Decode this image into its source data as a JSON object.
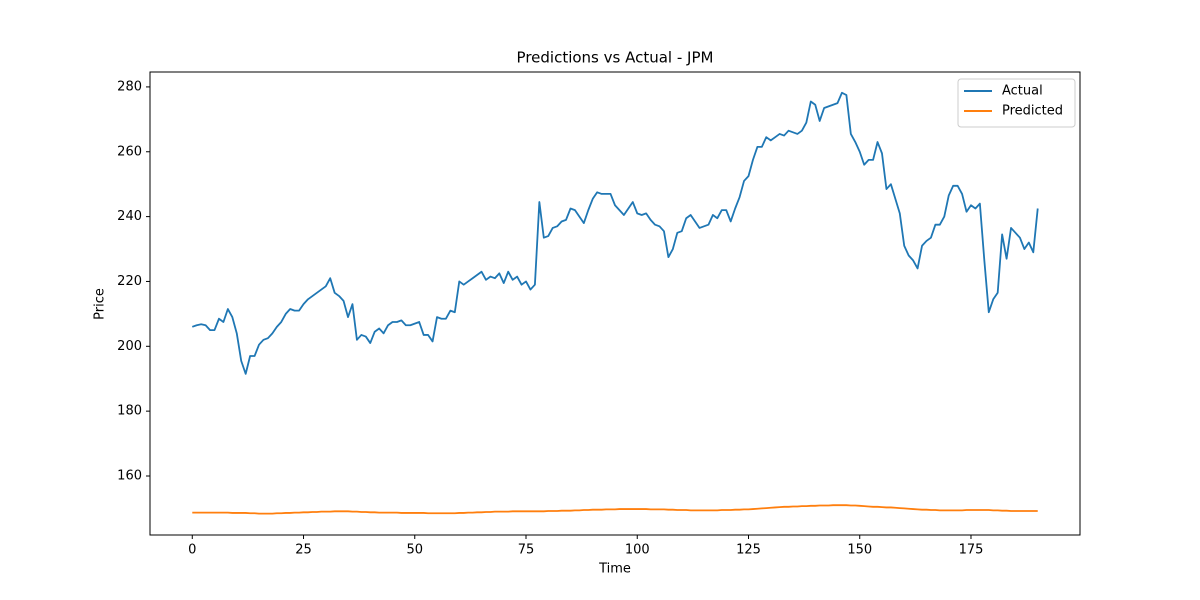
{
  "chart_data": {
    "type": "line",
    "title": "Predictions vs Actual - JPM",
    "x_label": "Time",
    "y_label": "Price",
    "x": [
      0,
      1,
      2,
      3,
      4,
      5,
      6,
      7,
      8,
      9,
      10,
      11,
      12,
      13,
      14,
      15,
      16,
      17,
      18,
      19,
      20,
      21,
      22,
      23,
      24,
      25,
      26,
      27,
      28,
      29,
      30,
      31,
      32,
      33,
      34,
      35,
      36,
      37,
      38,
      39,
      40,
      41,
      42,
      43,
      44,
      45,
      46,
      47,
      48,
      49,
      50,
      51,
      52,
      53,
      54,
      55,
      56,
      57,
      58,
      59,
      60,
      61,
      62,
      63,
      64,
      65,
      66,
      67,
      68,
      69,
      70,
      71,
      72,
      73,
      74,
      75,
      76,
      77,
      78,
      79,
      80,
      81,
      82,
      83,
      84,
      85,
      86,
      87,
      88,
      89,
      90,
      91,
      92,
      93,
      94,
      95,
      96,
      97,
      98,
      99,
      100,
      101,
      102,
      103,
      104,
      105,
      106,
      107,
      108,
      109,
      110,
      111,
      112,
      113,
      114,
      115,
      116,
      117,
      118,
      119,
      120,
      121,
      122,
      123,
      124,
      125,
      126,
      127,
      128,
      129,
      130,
      131,
      132,
      133,
      134,
      135,
      136,
      137,
      138,
      139,
      140,
      141,
      142,
      143,
      144,
      145,
      146,
      147,
      148,
      149,
      150,
      151,
      152,
      153,
      154,
      155,
      156,
      157,
      158,
      159,
      160,
      161,
      162,
      163,
      164,
      165,
      166,
      167,
      168,
      169,
      170,
      171,
      172,
      173,
      174,
      175,
      176,
      177,
      178,
      179,
      180,
      181,
      182,
      183,
      184,
      185,
      186,
      187,
      188,
      189,
      190
    ],
    "series": [
      {
        "name": "Actual",
        "color": "#1f77b4",
        "values": [
          206,
          206.5,
          206.8,
          206.5,
          205,
          205,
          208.5,
          207.5,
          211.5,
          209,
          204,
          195.5,
          191.5,
          197,
          197,
          200.5,
          202,
          202.5,
          204,
          206,
          207.5,
          210,
          211.5,
          211,
          211,
          213,
          214.5,
          215.5,
          216.5,
          217.5,
          218.5,
          221,
          216.5,
          215.5,
          214,
          209,
          213,
          202,
          203.5,
          203,
          201,
          204.5,
          205.5,
          204,
          206.5,
          207.5,
          207.5,
          208,
          206.5,
          206.5,
          207,
          207.5,
          203.5,
          203.5,
          201.5,
          209,
          208.5,
          208.5,
          211,
          210.5,
          220,
          219,
          220,
          221,
          222,
          223,
          220.5,
          221.5,
          221,
          222.5,
          219.5,
          223,
          220.5,
          221.5,
          219,
          220,
          217.5,
          219,
          244.5,
          233.5,
          234,
          236.5,
          237,
          238.5,
          239,
          242.5,
          242,
          240,
          238,
          242,
          245.5,
          247.5,
          247,
          247,
          247,
          243.5,
          242,
          240.5,
          242.5,
          244.5,
          241,
          240.5,
          241,
          239,
          237.5,
          237,
          235.5,
          227.5,
          230,
          235,
          235.5,
          239.5,
          240.5,
          238.5,
          236.5,
          237,
          237.5,
          240.5,
          239.5,
          242,
          242,
          238.5,
          242.5,
          246,
          251,
          252.5,
          257.5,
          261.5,
          261.5,
          264.5,
          263.5,
          264.5,
          265.5,
          265,
          266.5,
          266,
          265.5,
          266.5,
          269,
          275.5,
          274.5,
          269.5,
          273.5,
          274,
          274.5,
          275,
          278.2,
          277.5,
          265.5,
          263,
          260,
          256,
          257.5,
          257.5,
          263,
          259.5,
          248.5,
          250,
          245.5,
          241,
          231,
          228,
          226.5,
          224,
          231,
          232.5,
          233.5,
          237.5,
          237.5,
          240,
          246.5,
          249.5,
          249.5,
          247,
          241.5,
          243.5,
          242.5,
          244,
          226.5,
          210.5,
          214.5,
          216.5,
          234.5,
          227,
          236.5,
          235,
          233.5,
          230,
          232,
          229,
          242.5
        ]
      },
      {
        "name": "Predicted",
        "color": "#ff7f0e",
        "values": [
          148.7,
          148.7,
          148.7,
          148.7,
          148.7,
          148.7,
          148.7,
          148.7,
          148.7,
          148.6,
          148.6,
          148.6,
          148.6,
          148.5,
          148.5,
          148.4,
          148.4,
          148.4,
          148.4,
          148.5,
          148.5,
          148.6,
          148.6,
          148.7,
          148.7,
          148.8,
          148.8,
          148.9,
          148.9,
          149.0,
          149.0,
          149.0,
          149.1,
          149.1,
          149.1,
          149.1,
          149.0,
          149.0,
          148.9,
          148.9,
          148.8,
          148.8,
          148.7,
          148.7,
          148.7,
          148.7,
          148.7,
          148.6,
          148.6,
          148.6,
          148.6,
          148.6,
          148.6,
          148.5,
          148.5,
          148.5,
          148.5,
          148.5,
          148.5,
          148.5,
          148.6,
          148.6,
          148.7,
          148.7,
          148.8,
          148.8,
          148.9,
          148.9,
          149.0,
          149.0,
          149.0,
          149.0,
          149.1,
          149.1,
          149.1,
          149.1,
          149.1,
          149.1,
          149.1,
          149.1,
          149.2,
          149.2,
          149.2,
          149.3,
          149.3,
          149.3,
          149.4,
          149.4,
          149.5,
          149.5,
          149.6,
          149.6,
          149.6,
          149.7,
          149.7,
          149.7,
          149.8,
          149.8,
          149.8,
          149.8,
          149.8,
          149.8,
          149.8,
          149.7,
          149.7,
          149.7,
          149.7,
          149.6,
          149.6,
          149.5,
          149.5,
          149.5,
          149.4,
          149.4,
          149.4,
          149.4,
          149.4,
          149.4,
          149.4,
          149.5,
          149.5,
          149.5,
          149.6,
          149.6,
          149.7,
          149.7,
          149.8,
          149.9,
          150.0,
          150.1,
          150.2,
          150.3,
          150.4,
          150.5,
          150.5,
          150.6,
          150.6,
          150.7,
          150.7,
          150.8,
          150.8,
          150.9,
          150.9,
          150.9,
          151.0,
          151.0,
          151.0,
          151.0,
          150.9,
          150.9,
          150.8,
          150.7,
          150.6,
          150.5,
          150.5,
          150.4,
          150.3,
          150.3,
          150.2,
          150.1,
          150.0,
          149.9,
          149.8,
          149.7,
          149.6,
          149.6,
          149.5,
          149.5,
          149.4,
          149.4,
          149.4,
          149.4,
          149.4,
          149.4,
          149.5,
          149.5,
          149.5,
          149.5,
          149.5,
          149.5,
          149.4,
          149.4,
          149.3,
          149.3,
          149.2,
          149.2,
          149.2,
          149.2,
          149.2,
          149.2,
          149.2
        ]
      }
    ],
    "xlim": [
      -9.5,
      199.5
    ],
    "xticks": [
      0,
      25,
      50,
      75,
      100,
      125,
      150,
      175
    ],
    "ylim": [
      141.8,
      284.6
    ],
    "yticks": [
      160,
      180,
      200,
      220,
      240,
      260,
      280
    ],
    "legend": "upper right"
  }
}
